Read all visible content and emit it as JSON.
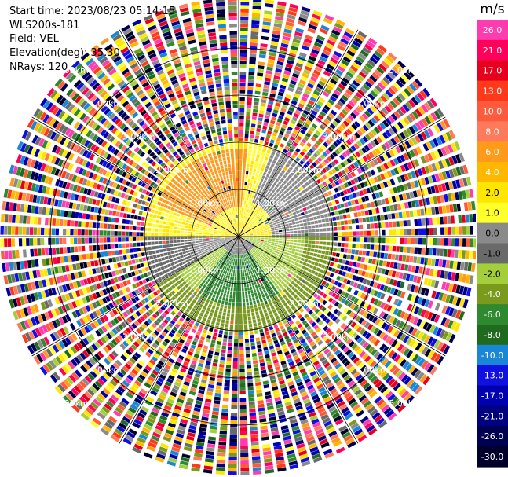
{
  "header": {
    "start_time": "Start time: 2023/08/23 05:14:15",
    "instrument": "WLS200s-181",
    "field": "Field: VEL",
    "elevation": "Elevation(deg): 35.30",
    "nrays": "NRays: 120"
  },
  "range_rings": {
    "labels": [
      "1.00km",
      "1.00km",
      "1.00km",
      "1.00km",
      "2.00km",
      "2.00km",
      "2.00km",
      "2.00km",
      "3.00km",
      "3.00km",
      "3.00km",
      "3.00km",
      "4.00km",
      "4.00km",
      "4.00km",
      "4.00km",
      "5.00km",
      "5.00km",
      "5.00km",
      "5.00km"
    ],
    "ring_km": [
      1,
      2,
      3,
      4,
      5
    ],
    "max_range_km": 5
  },
  "colorbar": {
    "unit": "m/s",
    "labels": [
      "26.0",
      "21.0",
      "17.0",
      "13.0",
      "10.0",
      "8.0",
      "6.0",
      "4.0",
      "2.0",
      "1.0",
      "0.0",
      "-1.0",
      "-2.0",
      "-4.0",
      "-6.0",
      "-8.0",
      "-10.0",
      "-13.0",
      "-17.0",
      "-21.0",
      "-26.0",
      "-30.0"
    ],
    "colors": [
      "#ff3bb0",
      "#ff005a",
      "#e6001e",
      "#ff3a1a",
      "#ff5a3c",
      "#ff7a5a",
      "#ff9a1a",
      "#ffb700",
      "#ffe600",
      "#ffff2a",
      "#8a8a8a",
      "#6a6a6a",
      "#a5cf3a",
      "#7a9a1e",
      "#2f8a2f",
      "#1f6a1f",
      "#1a86d6",
      "#1010e0",
      "#0000b0",
      "#000080",
      "#000050",
      "#00002a"
    ]
  }
}
